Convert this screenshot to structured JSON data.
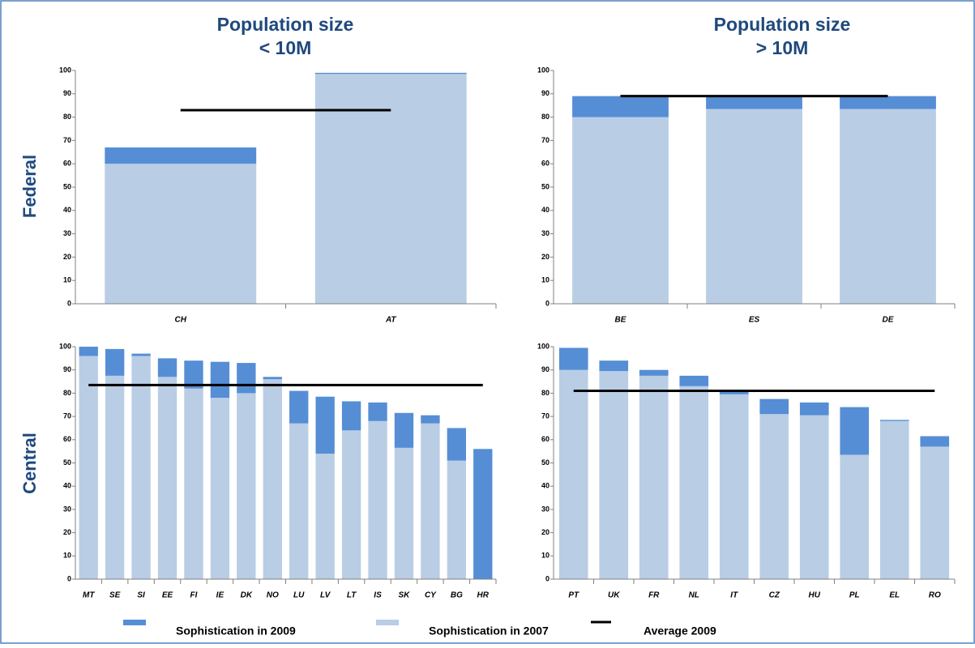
{
  "columns": [
    [
      "Population size",
      "< 10M"
    ],
    [
      "Population size",
      "> 10M"
    ]
  ],
  "rows": [
    "Federal",
    "Central"
  ],
  "legend": [
    {
      "name": "Sophistication in 2009",
      "color": "#558ed5",
      "kind": "box"
    },
    {
      "name": "Sophistication in 2007",
      "color": "#b9cde5",
      "kind": "box"
    },
    {
      "name": "Average 2009",
      "color": "#000000",
      "kind": "line"
    }
  ],
  "chart_data": [
    {
      "type": "bar",
      "stacked": true,
      "categories": [
        "CH",
        "AT"
      ],
      "series": [
        {
          "color": "#b9cde5",
          "values": [
            60,
            98.5
          ]
        },
        {
          "color": "#558ed5",
          "values": [
            7,
            0.5
          ]
        }
      ],
      "average": 83,
      "average_color": "#000000",
      "ylim": [
        0,
        100
      ],
      "yticks": [
        0,
        10,
        20,
        30,
        40,
        50,
        60,
        70,
        80,
        90,
        100
      ]
    },
    {
      "type": "bar",
      "stacked": true,
      "categories": [
        "BE",
        "ES",
        "DE"
      ],
      "series": [
        {
          "color": "#b9cde5",
          "values": [
            80,
            83.5,
            83.5
          ]
        },
        {
          "color": "#558ed5",
          "values": [
            9,
            5.5,
            5.5
          ]
        }
      ],
      "average": 89,
      "average_color": "#000000",
      "ylim": [
        0,
        100
      ],
      "yticks": [
        0,
        10,
        20,
        30,
        40,
        50,
        60,
        70,
        80,
        90,
        100
      ]
    },
    {
      "type": "bar",
      "stacked": true,
      "categories": [
        "MT",
        "SE",
        "SI",
        "EE",
        "FI",
        "IE",
        "DK",
        "NO",
        "LU",
        "LV",
        "LT",
        "IS",
        "SK",
        "CY",
        "BG",
        "HR"
      ],
      "series": [
        {
          "color": "#b9cde5",
          "values": [
            96,
            87.5,
            96,
            87,
            82,
            78,
            80,
            86,
            67,
            54,
            64,
            68,
            56.5,
            67,
            51,
            null
          ]
        },
        {
          "color": "#558ed5",
          "values": [
            4,
            11.5,
            1,
            8,
            12,
            15.5,
            13,
            1,
            14,
            24.5,
            12.5,
            8,
            15,
            3.5,
            14,
            56
          ]
        }
      ],
      "average": 83.5,
      "average_color": "#000000",
      "ylim": [
        0,
        100
      ],
      "yticks": [
        0,
        10,
        20,
        30,
        40,
        50,
        60,
        70,
        80,
        90,
        100
      ]
    },
    {
      "type": "bar",
      "stacked": true,
      "categories": [
        "PT",
        "UK",
        "FR",
        "NL",
        "IT",
        "CZ",
        "HU",
        "PL",
        "EL",
        "RO"
      ],
      "series": [
        {
          "color": "#b9cde5",
          "values": [
            90,
            89.5,
            87.5,
            83,
            79.5,
            71,
            70.5,
            53.5,
            68,
            57
          ]
        },
        {
          "color": "#558ed5",
          "values": [
            9.5,
            4.5,
            2.5,
            4.5,
            1,
            6.5,
            5.5,
            20.5,
            0.5,
            4.5
          ]
        }
      ],
      "average": 81,
      "average_color": "#000000",
      "ylim": [
        0,
        100
      ],
      "yticks": [
        0,
        10,
        20,
        30,
        40,
        50,
        60,
        70,
        80,
        90,
        100
      ]
    }
  ]
}
